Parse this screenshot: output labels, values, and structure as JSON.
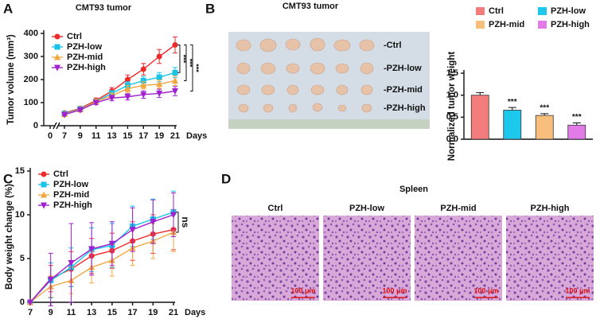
{
  "panels": [
    "A",
    "B",
    "C",
    "D"
  ],
  "chart_data": [
    {
      "type": "line",
      "title": "CMT93 tumor",
      "y_label": "Tumor volume (mm³)",
      "x_label": "Days",
      "x": [
        7,
        9,
        11,
        13,
        15,
        17,
        19,
        21
      ],
      "xlim": [
        0,
        21
      ],
      "xticks": [
        0,
        7,
        9,
        11,
        13,
        15,
        17,
        19,
        21
      ],
      "axis_break": true,
      "ylim": [
        0,
        400
      ],
      "yticks": [
        0,
        100,
        200,
        300,
        400
      ],
      "legend": "upper left",
      "series": [
        {
          "name": "Ctrl",
          "color": "#ee2a2a",
          "marker": "circle",
          "values": [
            55,
            75,
            110,
            150,
            200,
            245,
            300,
            350
          ],
          "errors": [
            5,
            8,
            10,
            15,
            20,
            25,
            30,
            35
          ]
        },
        {
          "name": "PZH-low",
          "color": "#19c3e8",
          "marker": "square",
          "values": [
            52,
            72,
            105,
            140,
            175,
            195,
            210,
            230
          ],
          "errors": [
            5,
            7,
            10,
            12,
            15,
            18,
            20,
            22
          ]
        },
        {
          "name": "PZH-mid",
          "color": "#f2a640",
          "marker": "triangle-up",
          "values": [
            50,
            70,
            105,
            130,
            160,
            175,
            180,
            195
          ],
          "errors": [
            5,
            7,
            9,
            12,
            15,
            16,
            18,
            20
          ]
        },
        {
          "name": "PZH-high",
          "color": "#a020d0",
          "marker": "triangle-down",
          "values": [
            48,
            68,
            100,
            120,
            125,
            135,
            140,
            150
          ],
          "errors": [
            5,
            6,
            9,
            12,
            14,
            16,
            18,
            20
          ]
        }
      ],
      "annotations": [
        "***",
        "***",
        "***"
      ]
    },
    {
      "type": "bar",
      "y_label": "Normalized tumor weight",
      "categories": [
        "Ctrl",
        "PZH-low",
        "PZH-mid",
        "PZH-high"
      ],
      "values": [
        1.0,
        0.66,
        0.54,
        0.32
      ],
      "errors": [
        0.06,
        0.06,
        0.04,
        0.05
      ],
      "colors": [
        "#f37c7c",
        "#1cc9ec",
        "#f8bf7c",
        "#e27ae8"
      ],
      "ylim": [
        0,
        1.5
      ],
      "yticks": [
        {
          "value": 0,
          "label": "0.0"
        },
        {
          "value": 0.5,
          "label": "0.5"
        },
        {
          "value": 1,
          "label": "1.0"
        },
        {
          "value": 1.5,
          "label": "1.5"
        }
      ],
      "legend": "top",
      "significance": [
        null,
        "***",
        "***",
        "***"
      ]
    },
    {
      "type": "line",
      "y_label": "Body weight change (%)",
      "x_label": "Days",
      "x": [
        7,
        9,
        11,
        13,
        15,
        17,
        19,
        21
      ],
      "xlim": [
        7,
        21
      ],
      "xticks": [
        7,
        9,
        11,
        13,
        15,
        17,
        19,
        21
      ],
      "ylim": [
        0,
        15
      ],
      "yticks": [
        0,
        5,
        10,
        15
      ],
      "legend": "upper left",
      "series": [
        {
          "name": "Ctrl",
          "color": "#ee2a2a",
          "marker": "circle",
          "values": [
            0,
            2.7,
            3.8,
            5.3,
            5.9,
            7,
            7.8,
            8.3
          ],
          "errors": [
            0,
            1.5,
            2,
            2,
            2,
            2.2,
            2.2,
            2.3
          ]
        },
        {
          "name": "PZH-low",
          "color": "#19c3e8",
          "marker": "square",
          "values": [
            0,
            2.5,
            4,
            6,
            6.5,
            8.7,
            9.5,
            10.3
          ],
          "errors": [
            0,
            2,
            2.2,
            2.5,
            2.5,
            2.3,
            2.3,
            2.4
          ]
        },
        {
          "name": "PZH-mid",
          "color": "#f2a640",
          "marker": "triangle-up",
          "values": [
            0,
            1.8,
            2.5,
            4,
            4.8,
            6.2,
            7,
            8
          ],
          "errors": [
            0,
            1.2,
            1.5,
            1.8,
            1.8,
            2,
            2,
            2.2
          ]
        },
        {
          "name": "PZH-high",
          "color": "#a020d0",
          "marker": "triangle-down",
          "values": [
            0,
            2.6,
            4.5,
            6.1,
            6.7,
            8.3,
            9.2,
            10
          ],
          "errors": [
            0,
            3,
            4.5,
            3,
            2.5,
            2.5,
            2.5,
            2.5
          ]
        }
      ],
      "annotations": [
        "ns"
      ]
    }
  ],
  "tumor_photo": {
    "title": "CMT93 tumor",
    "row_labels": [
      "-Ctrl",
      "-PZH-low",
      "-PZH-mid",
      "-PZH-high"
    ]
  },
  "spleen": {
    "title": "Spleen",
    "labels": [
      "Ctrl",
      "PZH-low",
      "PZH-mid",
      "PZH-high"
    ],
    "scale_bar": "100 μm"
  }
}
